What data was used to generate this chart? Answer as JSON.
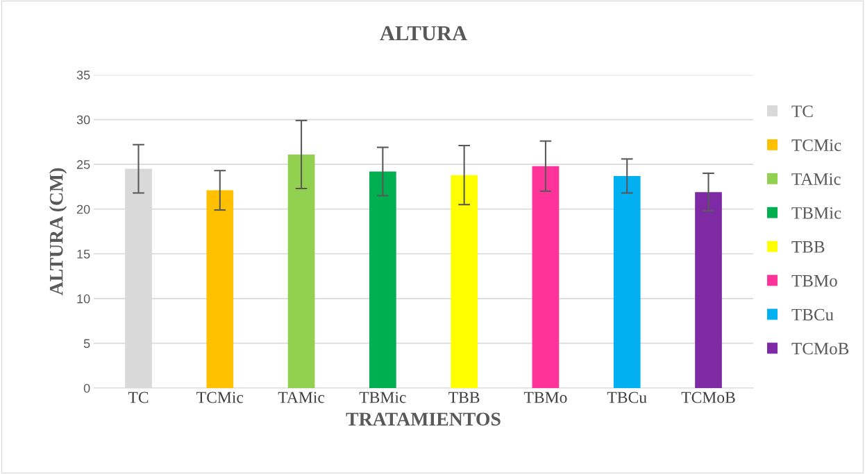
{
  "chart_data": {
    "type": "bar",
    "title": "ALTURA",
    "xlabel": "TRATAMIENTOS",
    "ylabel": "ALTURA (CM)",
    "categories": [
      "TC",
      "TCMic",
      "TAMic",
      "TBMic",
      "TBB",
      "TBMo",
      "TBCu",
      "TCMoB"
    ],
    "series": [
      {
        "name": "TC",
        "color": "#d9d9d9",
        "values": [
          24.5,
          null,
          null,
          null,
          null,
          null,
          null,
          null
        ],
        "errors": [
          2.7,
          null,
          null,
          null,
          null,
          null,
          null,
          null
        ]
      },
      {
        "name": "TCMic",
        "color": "#ffc000",
        "values": [
          null,
          22.1,
          null,
          null,
          null,
          null,
          null,
          null
        ],
        "errors": [
          null,
          2.2,
          null,
          null,
          null,
          null,
          null,
          null
        ]
      },
      {
        "name": "TAMic",
        "color": "#92d050",
        "values": [
          null,
          null,
          26.1,
          null,
          null,
          null,
          null,
          null
        ],
        "errors": [
          null,
          null,
          3.8,
          null,
          null,
          null,
          null,
          null
        ]
      },
      {
        "name": "TBMic",
        "color": "#00b050",
        "values": [
          null,
          null,
          null,
          24.2,
          null,
          null,
          null,
          null
        ],
        "errors": [
          null,
          null,
          null,
          2.7,
          null,
          null,
          null,
          null
        ]
      },
      {
        "name": "TBB",
        "color": "#ffff00",
        "values": [
          null,
          null,
          null,
          null,
          23.8,
          null,
          null,
          null
        ],
        "errors": [
          null,
          null,
          null,
          null,
          3.3,
          null,
          null,
          null
        ]
      },
      {
        "name": "TBMo",
        "color": "#ff3399",
        "values": [
          null,
          null,
          null,
          null,
          null,
          24.8,
          null,
          null
        ],
        "errors": [
          null,
          null,
          null,
          null,
          null,
          2.8,
          null,
          null
        ]
      },
      {
        "name": "TBCu",
        "color": "#00b0f0",
        "values": [
          null,
          null,
          null,
          null,
          null,
          null,
          23.7,
          null
        ],
        "errors": [
          null,
          null,
          null,
          null,
          null,
          null,
          1.9,
          null
        ]
      },
      {
        "name": "TCMoB",
        "color": "#7f2aa5",
        "values": [
          null,
          null,
          null,
          null,
          null,
          null,
          null,
          21.9
        ],
        "errors": [
          null,
          null,
          null,
          null,
          null,
          null,
          null,
          2.1
        ]
      }
    ],
    "ylim": [
      0,
      35
    ],
    "yticks": [
      0,
      5,
      10,
      15,
      20,
      25,
      30,
      35
    ],
    "grid": "y",
    "legend": "right"
  }
}
